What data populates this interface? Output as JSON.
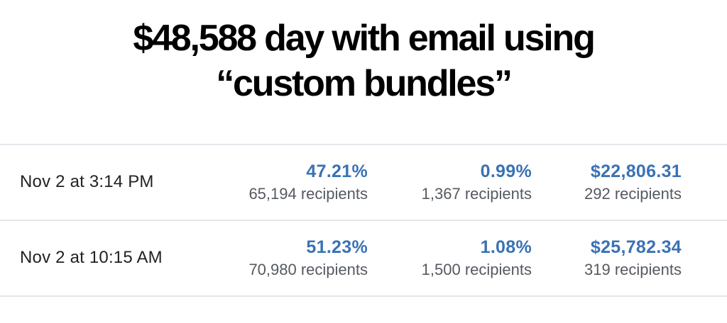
{
  "headline": {
    "line1": "$48,588 day with email using",
    "line2": "“custom bundles”"
  },
  "rows": [
    {
      "date": "Nov 2 at 3:14 PM",
      "open_rate": "47.21%",
      "open_recipients": "65,194 recipients",
      "click_rate": "0.99%",
      "click_recipients": "1,367 recipients",
      "revenue": "$22,806.31",
      "revenue_recipients": "292 recipients"
    },
    {
      "date": "Nov 2 at 10:15 AM",
      "open_rate": "51.23%",
      "open_recipients": "70,980 recipients",
      "click_rate": "1.08%",
      "click_recipients": "1,500 recipients",
      "revenue": "$25,782.34",
      "revenue_recipients": "319 recipients"
    }
  ],
  "colors": {
    "accent": "#3a72b5",
    "muted_text": "#555a60",
    "divider": "#e4e6ea"
  }
}
